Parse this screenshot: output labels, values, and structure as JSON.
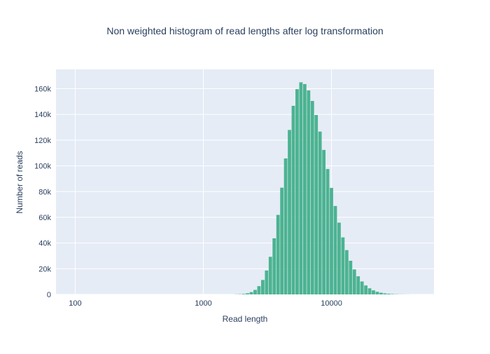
{
  "chart_data": {
    "type": "bar",
    "title": "Non weighted histogram of read lengths after log transformation",
    "xlabel": "Read length",
    "ylabel": "Number of reads",
    "x_scale": "log",
    "x_log_domain": [
      1.85,
      4.8
    ],
    "ylim": [
      0,
      175000
    ],
    "bar_color": "#4cb391",
    "plot_bg": "#e5ecf6",
    "grid_color": "#ffffff",
    "text_color": "#2a3f5f",
    "legend": "none",
    "grid": "on",
    "yticks": [
      {
        "value": 0,
        "label": "0"
      },
      {
        "value": 20000,
        "label": "20k"
      },
      {
        "value": 40000,
        "label": "40k"
      },
      {
        "value": 60000,
        "label": "60k"
      },
      {
        "value": 80000,
        "label": "80k"
      },
      {
        "value": 100000,
        "label": "100k"
      },
      {
        "value": 120000,
        "label": "120k"
      },
      {
        "value": 140000,
        "label": "140k"
      },
      {
        "value": 160000,
        "label": "160k"
      }
    ],
    "xticks": [
      {
        "value": 100,
        "label": "100"
      },
      {
        "value": 1000,
        "label": "1000"
      },
      {
        "value": 10000,
        "label": "10000"
      }
    ],
    "x": [
      1800,
      1928,
      2065,
      2211,
      2368,
      2536,
      2716,
      2909,
      3115,
      3336,
      3573,
      3827,
      4098,
      4389,
      4701,
      5034,
      5392,
      5775,
      6185,
      6624,
      7094,
      7598,
      8137,
      8715,
      9334,
      9996,
      10706,
      11466,
      12280,
      13152,
      14086,
      15086,
      16157,
      17304,
      18532,
      19848,
      21257,
      22766,
      24383,
      26114,
      27968,
      29953,
      32080,
      34357,
      36796,
      39409
    ],
    "values": [
      100,
      180,
      410,
      885,
      1810,
      3500,
      6440,
      11250,
      18600,
      29260,
      43640,
      61860,
      83010,
      105760,
      127890,
      146670,
      159670,
      164970,
      163580,
      158630,
      150460,
      139570,
      126640,
      112380,
      97520,
      82830,
      68770,
      55840,
      44350,
      34450,
      26170,
      19450,
      14120,
      10070,
      6980,
      4760,
      3160,
      2050,
      1310,
      810,
      495,
      295,
      172,
      98,
      54,
      30
    ]
  }
}
